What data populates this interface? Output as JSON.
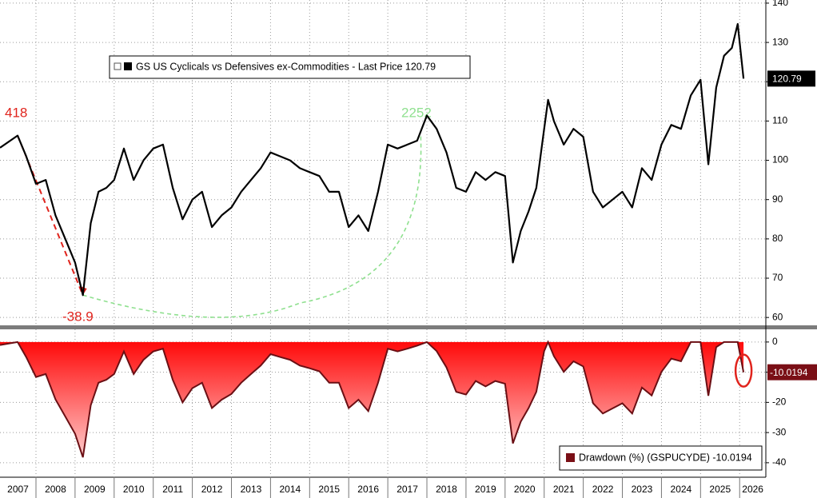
{
  "chart_data": [
    {
      "type": "line",
      "legend": "GS US Cyclicals vs Defensives ex-Commodities - Last Price 120.79",
      "last_value_tag": "120.79",
      "annotations": [
        "418",
        "-38.9",
        "2252"
      ],
      "x": [
        2007.08,
        2007.53,
        2007.75,
        2008.0,
        2008.25,
        2008.5,
        2008.75,
        2009.0,
        2009.2,
        2009.4,
        2009.6,
        2009.8,
        2010.0,
        2010.25,
        2010.5,
        2010.75,
        2011.0,
        2011.25,
        2011.5,
        2011.75,
        2012.0,
        2012.25,
        2012.5,
        2012.75,
        2013.0,
        2013.25,
        2013.5,
        2013.75,
        2014.0,
        2014.25,
        2014.5,
        2014.75,
        2015.0,
        2015.25,
        2015.5,
        2015.75,
        2016.0,
        2016.25,
        2016.5,
        2016.75,
        2017.0,
        2017.25,
        2017.5,
        2017.75,
        2018.0,
        2018.25,
        2018.5,
        2018.75,
        2019.0,
        2019.25,
        2019.5,
        2019.75,
        2020.0,
        2020.2,
        2020.4,
        2020.6,
        2020.8,
        2021.0,
        2021.1,
        2021.25,
        2021.5,
        2021.75,
        2022.0,
        2022.25,
        2022.5,
        2022.75,
        2023.0,
        2023.25,
        2023.5,
        2023.75,
        2024.0,
        2024.25,
        2024.5,
        2024.75,
        2025.0,
        2025.2,
        2025.4,
        2025.6,
        2025.8,
        2025.95,
        2026.1
      ],
      "series": [
        {
          "name": "GS US Cyclicals vs Defensives ex-Commodities",
          "color": "#000000",
          "values": [
            103.2,
            106.3,
            101,
            94,
            95,
            86,
            80,
            74,
            65.7,
            84,
            92,
            93,
            95,
            103,
            95,
            100,
            103,
            104,
            93,
            85,
            90,
            92,
            83,
            86,
            88,
            92,
            95,
            98,
            102,
            101,
            100,
            98,
            97,
            96,
            92,
            92,
            83,
            86,
            82,
            92,
            104,
            103,
            104,
            105,
            111.4,
            108,
            102,
            93,
            92,
            97,
            95,
            97,
            96,
            74,
            82,
            87,
            93,
            108,
            115.4,
            110,
            104,
            108,
            106,
            92,
            88,
            90,
            92,
            88,
            98,
            95,
            104,
            109,
            108,
            116.5,
            120.5,
            99,
            118.5,
            126.6,
            128.6,
            134.7,
            120.79
          ]
        }
      ],
      "xlim": [
        2007.08,
        2026.67
      ],
      "ylim": [
        58,
        140.8
      ],
      "yticks": [
        60,
        70,
        80,
        90,
        100,
        110,
        120,
        130,
        140
      ],
      "grid": true
    },
    {
      "type": "area",
      "legend": "Drawdown (%) (GSPUCYDE) -10.0194",
      "last_value_tag": "-10.0194",
      "x": [
        2007.08,
        2007.53,
        2007.75,
        2008.0,
        2008.25,
        2008.5,
        2008.75,
        2009.0,
        2009.2,
        2009.4,
        2009.6,
        2009.8,
        2010.0,
        2010.25,
        2010.5,
        2010.75,
        2011.0,
        2011.25,
        2011.5,
        2011.75,
        2012.0,
        2012.25,
        2012.5,
        2012.75,
        2013.0,
        2013.25,
        2013.5,
        2013.75,
        2014.0,
        2014.25,
        2014.5,
        2014.75,
        2015.0,
        2015.25,
        2015.5,
        2015.75,
        2016.0,
        2016.25,
        2016.5,
        2016.75,
        2017.0,
        2017.25,
        2017.5,
        2017.75,
        2018.0,
        2018.25,
        2018.5,
        2018.75,
        2019.0,
        2019.25,
        2019.5,
        2019.75,
        2020.0,
        2020.2,
        2020.4,
        2020.6,
        2020.8,
        2021.0,
        2021.1,
        2021.25,
        2021.5,
        2021.75,
        2022.0,
        2022.25,
        2022.5,
        2022.75,
        2023.0,
        2023.25,
        2023.5,
        2023.75,
        2024.0,
        2024.25,
        2024.5,
        2024.75,
        2025.0,
        2025.2,
        2025.4,
        2025.6,
        2025.8,
        2025.95,
        2026.1
      ],
      "series": [
        {
          "name": "Drawdown (%) (GSPUCYDE)",
          "color": "#e8111a",
          "values": [
            -1,
            0,
            -5,
            -11.6,
            -10.6,
            -19,
            -24.7,
            -30.4,
            -38.2,
            -21,
            -13.5,
            -12.5,
            -10.6,
            -3.1,
            -10.6,
            -5.9,
            -3.1,
            -2.2,
            -12.5,
            -20,
            -15.3,
            -13.5,
            -21.9,
            -19.1,
            -17.2,
            -13.5,
            -10.6,
            -7.8,
            -4,
            -5,
            -5.9,
            -7.8,
            -8.7,
            -9.7,
            -13.5,
            -13.5,
            -21.9,
            -19.1,
            -22.9,
            -13.5,
            -2.2,
            -3.1,
            -2.2,
            -1.2,
            0,
            -3,
            -8.4,
            -16.5,
            -17.4,
            -12.9,
            -14.7,
            -12.9,
            -13.8,
            -33.6,
            -26.4,
            -21.9,
            -16.5,
            -3,
            0,
            -4.7,
            -9.9,
            -6.4,
            -8.1,
            -20.3,
            -23.7,
            -22,
            -20.3,
            -23.7,
            -15.1,
            -17.7,
            -9.9,
            -5.5,
            -6.4,
            0,
            0,
            -17.8,
            -1.7,
            0,
            0,
            0,
            -10.0194
          ]
        }
      ],
      "xlim": [
        2007.08,
        2026.67
      ],
      "xticks": [
        {
          "value": 2007,
          "label": "2007"
        },
        {
          "value": 2008,
          "label": "2008"
        },
        {
          "value": 2009,
          "label": "2009"
        },
        {
          "value": 2010,
          "label": "2010"
        },
        {
          "value": 2011,
          "label": "2011"
        },
        {
          "value": 2012,
          "label": "2012"
        },
        {
          "value": 2013,
          "label": "2013"
        },
        {
          "value": 2014,
          "label": "2014"
        },
        {
          "value": 2015,
          "label": "2015"
        },
        {
          "value": 2016,
          "label": "2016"
        },
        {
          "value": 2017,
          "label": "2017"
        },
        {
          "value": 2018,
          "label": "2018"
        },
        {
          "value": 2019,
          "label": "2019"
        },
        {
          "value": 2020,
          "label": "2020"
        },
        {
          "value": 2021,
          "label": "2021"
        },
        {
          "value": 2022,
          "label": "2022"
        },
        {
          "value": 2023,
          "label": "2023"
        },
        {
          "value": 2024,
          "label": "2024"
        },
        {
          "value": 2025,
          "label": "2025"
        },
        {
          "value": 2026,
          "label": "2026"
        }
      ],
      "ylim": [
        -44.8,
        4.2
      ],
      "yticks": [
        0,
        -10,
        -20,
        -30,
        -40
      ],
      "grid": true
    }
  ]
}
